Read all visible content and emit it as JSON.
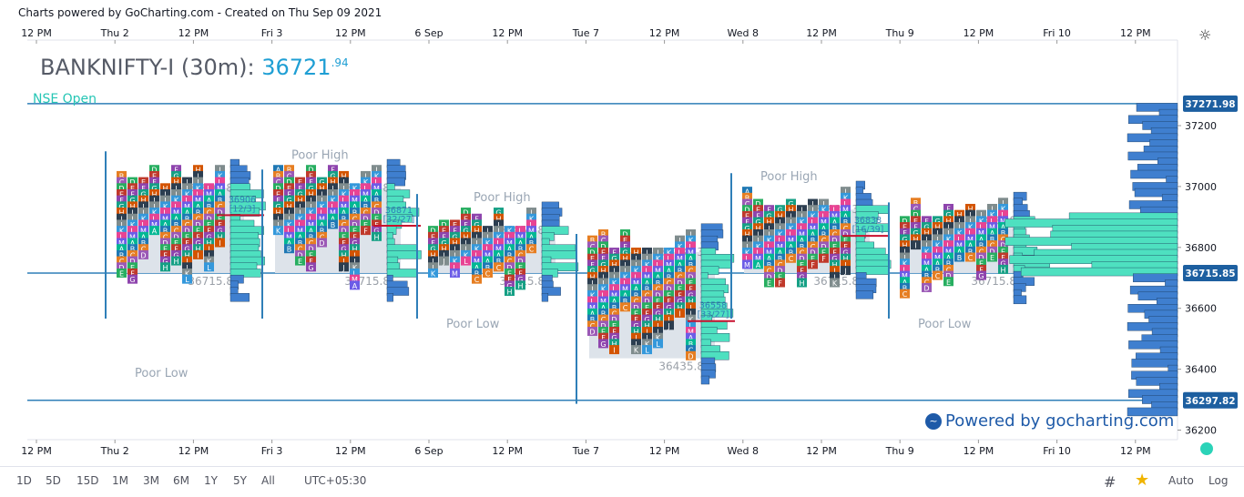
{
  "header": {
    "text": "Charts powered by GoCharting.com - Created on Thu Sep 09 2021"
  },
  "legend": {
    "symbol": "BANKNIFTY-I (30m):",
    "price": "36721",
    "price_decimals": ".94",
    "session": "NSE Open"
  },
  "brand": {
    "text": "Powered by gocharting.com"
  },
  "toolbar": {
    "ranges": [
      "1D",
      "5D",
      "15D",
      "1M",
      "3M",
      "6M",
      "1Y",
      "5Y",
      "All"
    ],
    "timezone": "UTC+05:30",
    "auto": "Auto",
    "log": "Log"
  },
  "colors": {
    "accent": "#2f7fb8",
    "poc": "#c8102e",
    "vp_teal": "#4ee0c0",
    "vp_blue": "#3f7fcf",
    "value_area": "#dde3ea"
  },
  "chart_data": {
    "type": "market-profile",
    "x_axis_labels": [
      "12 PM",
      "Thu 2",
      "12 PM",
      "Fri 3",
      "12 PM",
      "6 Sep",
      "12 PM",
      "Tue 7",
      "12 PM",
      "Wed 8",
      "12 PM",
      "Thu 9",
      "12 PM",
      "Fri 10",
      "12 PM"
    ],
    "y_ticks": [
      37200,
      37000,
      36800,
      36600,
      36400,
      36200
    ],
    "ylim": [
      36130,
      37400
    ],
    "price_labels": [
      37271.98,
      36715.85,
      36297.82
    ],
    "sessions": [
      {
        "label": "Thu 2",
        "vah": 36995.8,
        "val": 36715.8,
        "poc": 36906,
        "poc_text": "36906",
        "poc_tpo": "[12/3]",
        "annotations": [
          "Poor Low"
        ]
      },
      {
        "label": "Fri 3",
        "vah": 36995.8,
        "val": 36715.8,
        "poc": 36871,
        "poc_text": "36871",
        "poc_tpo": "[32/27]",
        "annotations": [
          "Poor High"
        ]
      },
      {
        "label": "6 Sep",
        "vah": 36855.8,
        "val": 36715.8,
        "poc": null,
        "poc_text": "",
        "poc_tpo": "",
        "annotations": [
          "Poor Low",
          "Poor High"
        ]
      },
      {
        "label": "Tue 7",
        "vah": 36784.3,
        "val": 36435.8,
        "poc": 36558,
        "poc_text": "36558",
        "poc_tpo": "[33/27]",
        "annotations": []
      },
      {
        "label": "Wed 8",
        "vah": 36924.3,
        "val": 36715.8,
        "poc": 36838,
        "poc_text": "36838",
        "poc_tpo": "[16/39]",
        "annotations": [
          "Poor High"
        ]
      },
      {
        "label": "Thu 9",
        "vah": 36888,
        "val": 36715.8,
        "poc": null,
        "poc_text": "",
        "poc_tpo": "",
        "annotations": [
          "Poor Low"
        ]
      }
    ]
  }
}
